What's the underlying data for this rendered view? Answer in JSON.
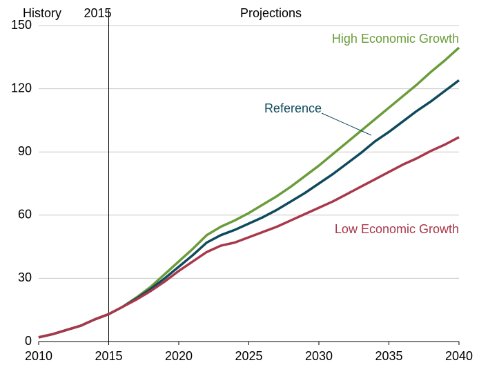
{
  "chart_data": {
    "type": "line",
    "annotations": {
      "history": "History",
      "projections": "Projections"
    },
    "divider": 2015,
    "x": [
      2010,
      2011,
      2012,
      2013,
      2014,
      2015,
      2016,
      2017,
      2018,
      2019,
      2020,
      2021,
      2022,
      2023,
      2024,
      2025,
      2026,
      2027,
      2028,
      2029,
      2030,
      2031,
      2032,
      2033,
      2034,
      2035,
      2036,
      2037,
      2038,
      2039,
      2040
    ],
    "series": [
      {
        "name": "High Economic Growth",
        "color": "#6a9c3a",
        "values": [
          2,
          3.5,
          5.5,
          7.5,
          10.5,
          13,
          16.5,
          21,
          26,
          32,
          38,
          44,
          50.5,
          54.5,
          57.5,
          61,
          65,
          69,
          73.5,
          78.5,
          83.5,
          89,
          94.5,
          100,
          105.5,
          111,
          116.5,
          122,
          128,
          133.5,
          139.5
        ]
      },
      {
        "name": "Reference",
        "color": "#0f4a5c",
        "values": [
          2,
          3.5,
          5.5,
          7.5,
          10.5,
          13,
          16.5,
          20.5,
          25,
          30,
          35.5,
          41,
          47,
          50.5,
          53,
          56,
          59,
          62.5,
          66.5,
          70.5,
          75,
          79.5,
          84.5,
          89.5,
          95,
          99.5,
          104.5,
          109.5,
          114,
          119,
          124
        ]
      },
      {
        "name": "Low Economic Growth",
        "color": "#a8384a",
        "values": [
          2,
          3.5,
          5.5,
          7.5,
          10.5,
          13,
          16.5,
          20,
          24,
          28.5,
          33.5,
          38,
          42.5,
          45.5,
          47,
          49.5,
          52,
          54.5,
          57.5,
          60.5,
          63.5,
          66.5,
          70,
          73.5,
          77,
          80.5,
          84,
          87,
          90.5,
          93.5,
          97
        ]
      }
    ],
    "xlim": [
      2010,
      2040
    ],
    "xticks": [
      2010,
      2015,
      2020,
      2025,
      2030,
      2035,
      2040
    ],
    "ylim": [
      0,
      150
    ],
    "yticks": [
      0,
      30,
      60,
      90,
      120,
      150
    ],
    "grid": true
  }
}
